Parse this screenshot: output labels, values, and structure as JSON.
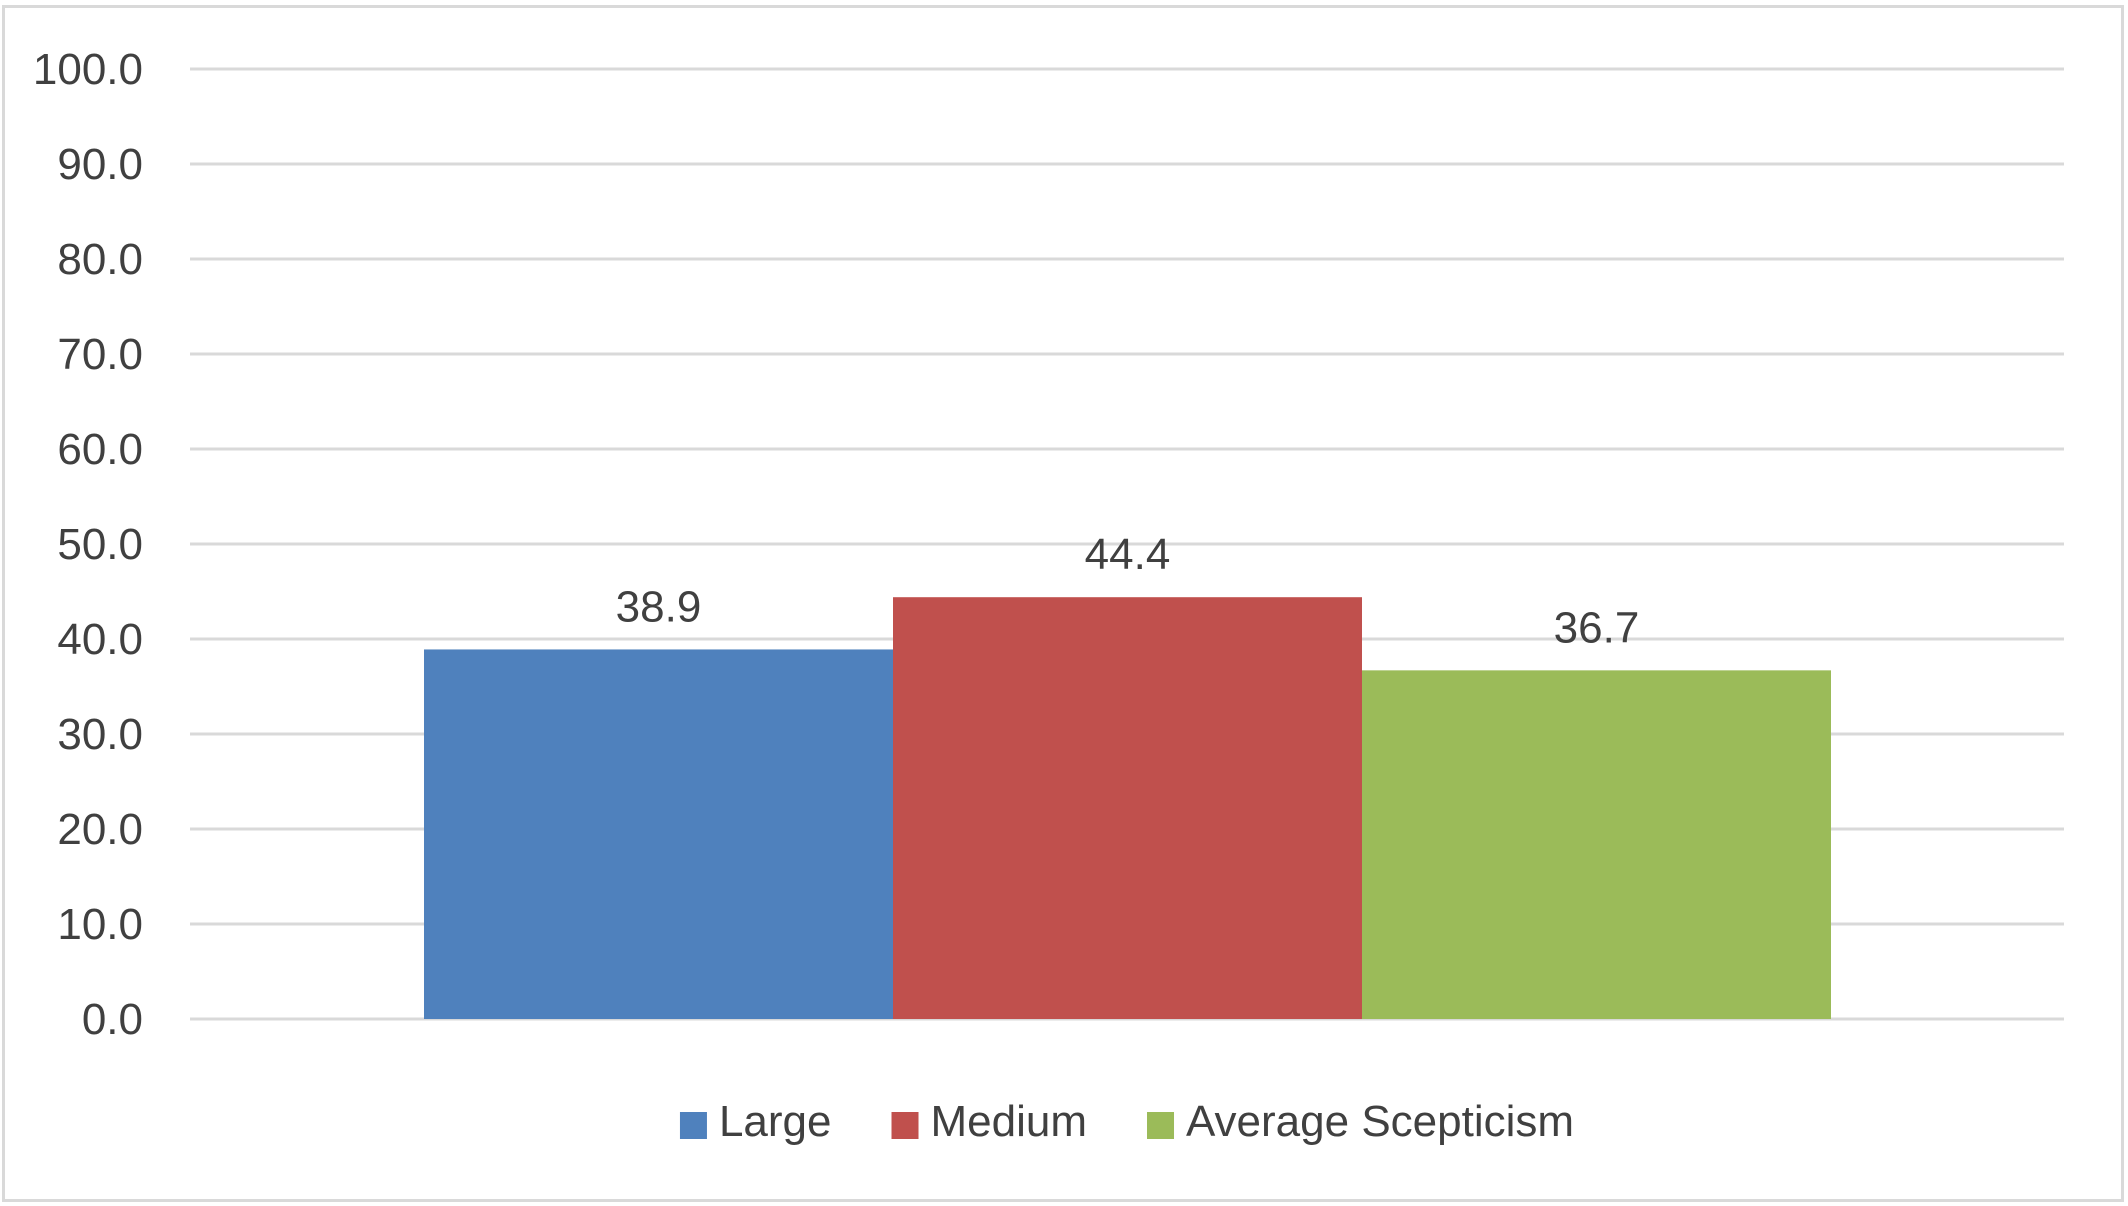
{
  "chart_data": {
    "type": "bar",
    "title": "",
    "xlabel": "",
    "ylabel": "",
    "ylim": [
      0,
      100
    ],
    "yticks": [
      "0.0",
      "10.0",
      "20.0",
      "30.0",
      "40.0",
      "50.0",
      "60.0",
      "70.0",
      "80.0",
      "90.0",
      "100.0"
    ],
    "grid": true,
    "legend_position": "bottom",
    "series": [
      {
        "name": "Large",
        "value": 38.9,
        "label": "38.9",
        "color": "#4f81bd"
      },
      {
        "name": "Medium",
        "value": 44.4,
        "label": "44.4",
        "color": "#c0504d"
      },
      {
        "name": "Average Scepticism",
        "value": 36.7,
        "label": "36.7",
        "color": "#9bbb59"
      }
    ]
  }
}
